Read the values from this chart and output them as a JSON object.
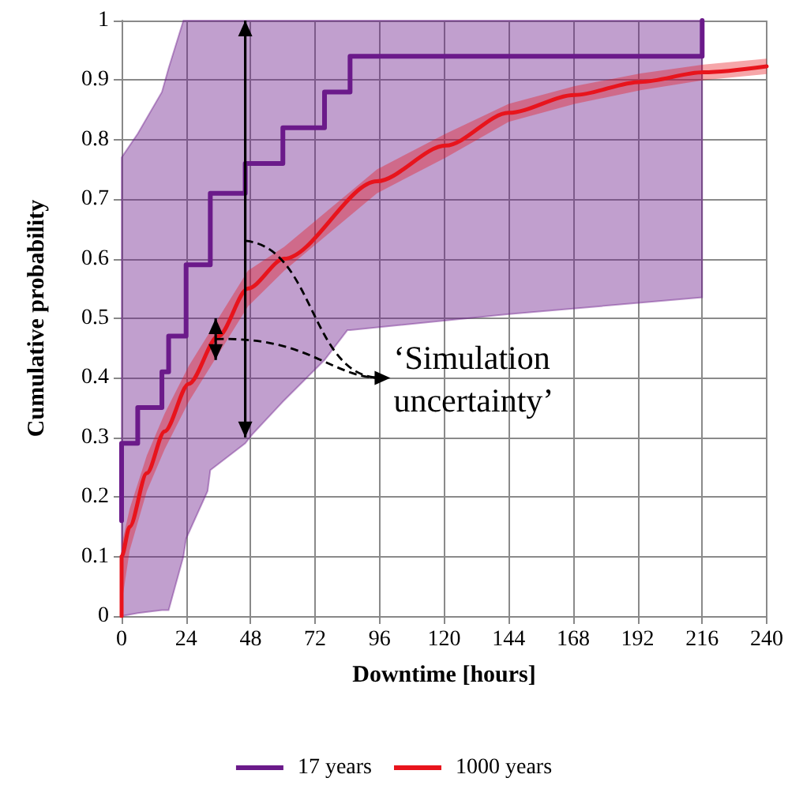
{
  "chart_data": {
    "type": "line",
    "xlabel": "Downtime [hours]",
    "ylabel": "Cumulative probability",
    "xlim": [
      0,
      240
    ],
    "xticks": [
      0,
      24,
      48,
      72,
      96,
      120,
      144,
      168,
      192,
      216,
      240
    ],
    "ylim": [
      0,
      1
    ],
    "yticks": [
      0,
      0.1,
      0.2,
      0.3,
      0.4,
      0.5,
      0.6,
      0.7,
      0.8,
      0.9,
      1
    ],
    "grid": true,
    "legend": "bottom",
    "marker": "none",
    "line_style": "solid",
    "annotations": [
      {
        "text": "‘Simulation uncertainty’",
        "x": 35,
        "y": 0.465
      }
    ],
    "series": [
      {
        "name": "17 years",
        "type": "step",
        "color": "#6b1a8a",
        "x": [
          0,
          0,
          6,
          15,
          17.5,
          23,
          24,
          32,
          33,
          46,
          48.6,
          60,
          75.5,
          84,
          85,
          144,
          216,
          216
        ],
        "values": [
          0.16,
          0.29,
          0.35,
          0.41,
          0.47,
          0.47,
          0.59,
          0.59,
          0.71,
          0.76,
          0.76,
          0.82,
          0.88,
          0.88,
          0.94,
          0.94,
          0.94,
          1.0
        ],
        "lower": [
          0,
          0,
          0.005,
          0.01,
          0.01,
          0.1,
          0.13,
          0.21,
          0.245,
          0.29,
          0.305,
          0.36,
          0.43,
          0.48,
          0.48,
          0.507,
          0.535,
          0.535
        ],
        "upper": [
          0.77,
          0.77,
          0.81,
          0.88,
          0.92,
          1,
          1,
          1,
          1,
          1,
          1,
          1,
          1,
          1,
          1,
          1,
          1,
          1
        ]
      },
      {
        "name": "1000 years",
        "color": "#e8141c",
        "x": [
          0,
          0,
          3,
          9.4,
          16,
          25,
          36,
          47,
          60.5,
          95,
          120.6,
          144,
          168.6,
          193,
          216.5,
          240
        ],
        "values": [
          0,
          0.1,
          0.15,
          0.24,
          0.31,
          0.39,
          0.47,
          0.55,
          0.6,
          0.73,
          0.79,
          0.845,
          0.875,
          0.897,
          0.913,
          0.923
        ],
        "lower": [
          0,
          0.02,
          0.11,
          0.21,
          0.28,
          0.36,
          0.44,
          0.52,
          0.58,
          0.71,
          0.77,
          0.83,
          0.86,
          0.883,
          0.9,
          0.91
        ],
        "upper": [
          0.02,
          0.12,
          0.18,
          0.27,
          0.34,
          0.42,
          0.5,
          0.58,
          0.62,
          0.75,
          0.81,
          0.86,
          0.89,
          0.911,
          0.926,
          0.936
        ]
      }
    ]
  }
}
